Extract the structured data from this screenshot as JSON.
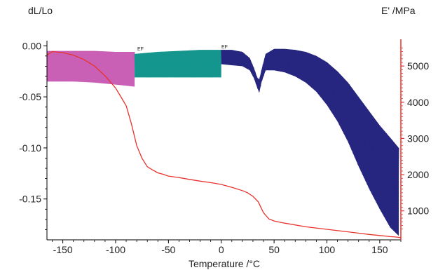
{
  "chart_data": {
    "type": "line",
    "title": "",
    "xlabel": "Temperature /°C",
    "ylabel_left": "dL/Lo",
    "ylabel_right": "E' /MPa",
    "xlim": [
      -165,
      170
    ],
    "ylim_left": [
      -0.19,
      0.005
    ],
    "ylim_right": [
      200,
      5700
    ],
    "x_ticks": [
      -150,
      -100,
      -50,
      0,
      50,
      100,
      150
    ],
    "y_left_ticks": [
      0.0,
      -0.05,
      -0.1,
      -0.15
    ],
    "y_left_tick_labels": [
      "0.00",
      "-0.05",
      "-0.10",
      "-0.15"
    ],
    "y_right_ticks": [
      1000,
      2000,
      3000,
      4000,
      5000
    ],
    "grid": false,
    "legend": "none",
    "annotations": [
      "EF",
      "EF"
    ],
    "series": [
      {
        "axis": "left",
        "color": "#c960b5",
        "style": "oscillation-band",
        "x": [
          -165,
          -140,
          -120,
          -100,
          -82
        ],
        "upper": [
          -0.005,
          -0.005,
          -0.005,
          -0.006,
          -0.006
        ],
        "lower": [
          -0.035,
          -0.035,
          -0.036,
          -0.038,
          -0.04
        ]
      },
      {
        "axis": "left",
        "color": "#14968e",
        "style": "oscillation-band",
        "x": [
          -82,
          -60,
          -40,
          -20,
          0
        ],
        "upper": [
          -0.008,
          -0.006,
          -0.005,
          -0.004,
          -0.004
        ],
        "lower": [
          -0.031,
          -0.031,
          -0.031,
          -0.031,
          -0.031
        ]
      },
      {
        "axis": "left",
        "color": "#262680",
        "style": "oscillation-band",
        "x": [
          0,
          10,
          20,
          27,
          31,
          34,
          36,
          38,
          42,
          50,
          60,
          70,
          80,
          90,
          100,
          110,
          120,
          130,
          140,
          150,
          160,
          168
        ],
        "upper": [
          -0.004,
          -0.004,
          -0.006,
          -0.012,
          -0.022,
          -0.031,
          -0.033,
          -0.024,
          -0.008,
          -0.003,
          -0.003,
          -0.004,
          -0.006,
          -0.01,
          -0.016,
          -0.025,
          -0.036,
          -0.05,
          -0.064,
          -0.078,
          -0.09,
          -0.1
        ],
        "lower": [
          -0.018,
          -0.019,
          -0.02,
          -0.024,
          -0.032,
          -0.041,
          -0.046,
          -0.036,
          -0.024,
          -0.024,
          -0.026,
          -0.03,
          -0.036,
          -0.045,
          -0.058,
          -0.074,
          -0.094,
          -0.118,
          -0.14,
          -0.16,
          -0.178,
          -0.186
        ]
      },
      {
        "axis": "right",
        "name": "",
        "color": "#e8332d",
        "style": "line",
        "x": [
          -165,
          -160,
          -150,
          -140,
          -130,
          -120,
          -110,
          -100,
          -95,
          -90,
          -85,
          -80,
          -75,
          -70,
          -65,
          -60,
          -55,
          -50,
          -40,
          -30,
          -20,
          -10,
          0,
          10,
          20,
          25,
          30,
          35,
          40,
          45,
          50,
          60,
          80,
          100,
          120,
          140,
          150,
          160,
          165,
          170
        ],
        "y": [
          5300,
          5400,
          5370,
          5300,
          5180,
          5000,
          4730,
          4390,
          4150,
          3900,
          3400,
          2800,
          2450,
          2220,
          2130,
          2050,
          2010,
          1960,
          1920,
          1870,
          1820,
          1780,
          1730,
          1650,
          1560,
          1500,
          1400,
          1250,
          950,
          780,
          720,
          660,
          560,
          490,
          420,
          350,
          320,
          290,
          280,
          260
        ]
      }
    ]
  }
}
